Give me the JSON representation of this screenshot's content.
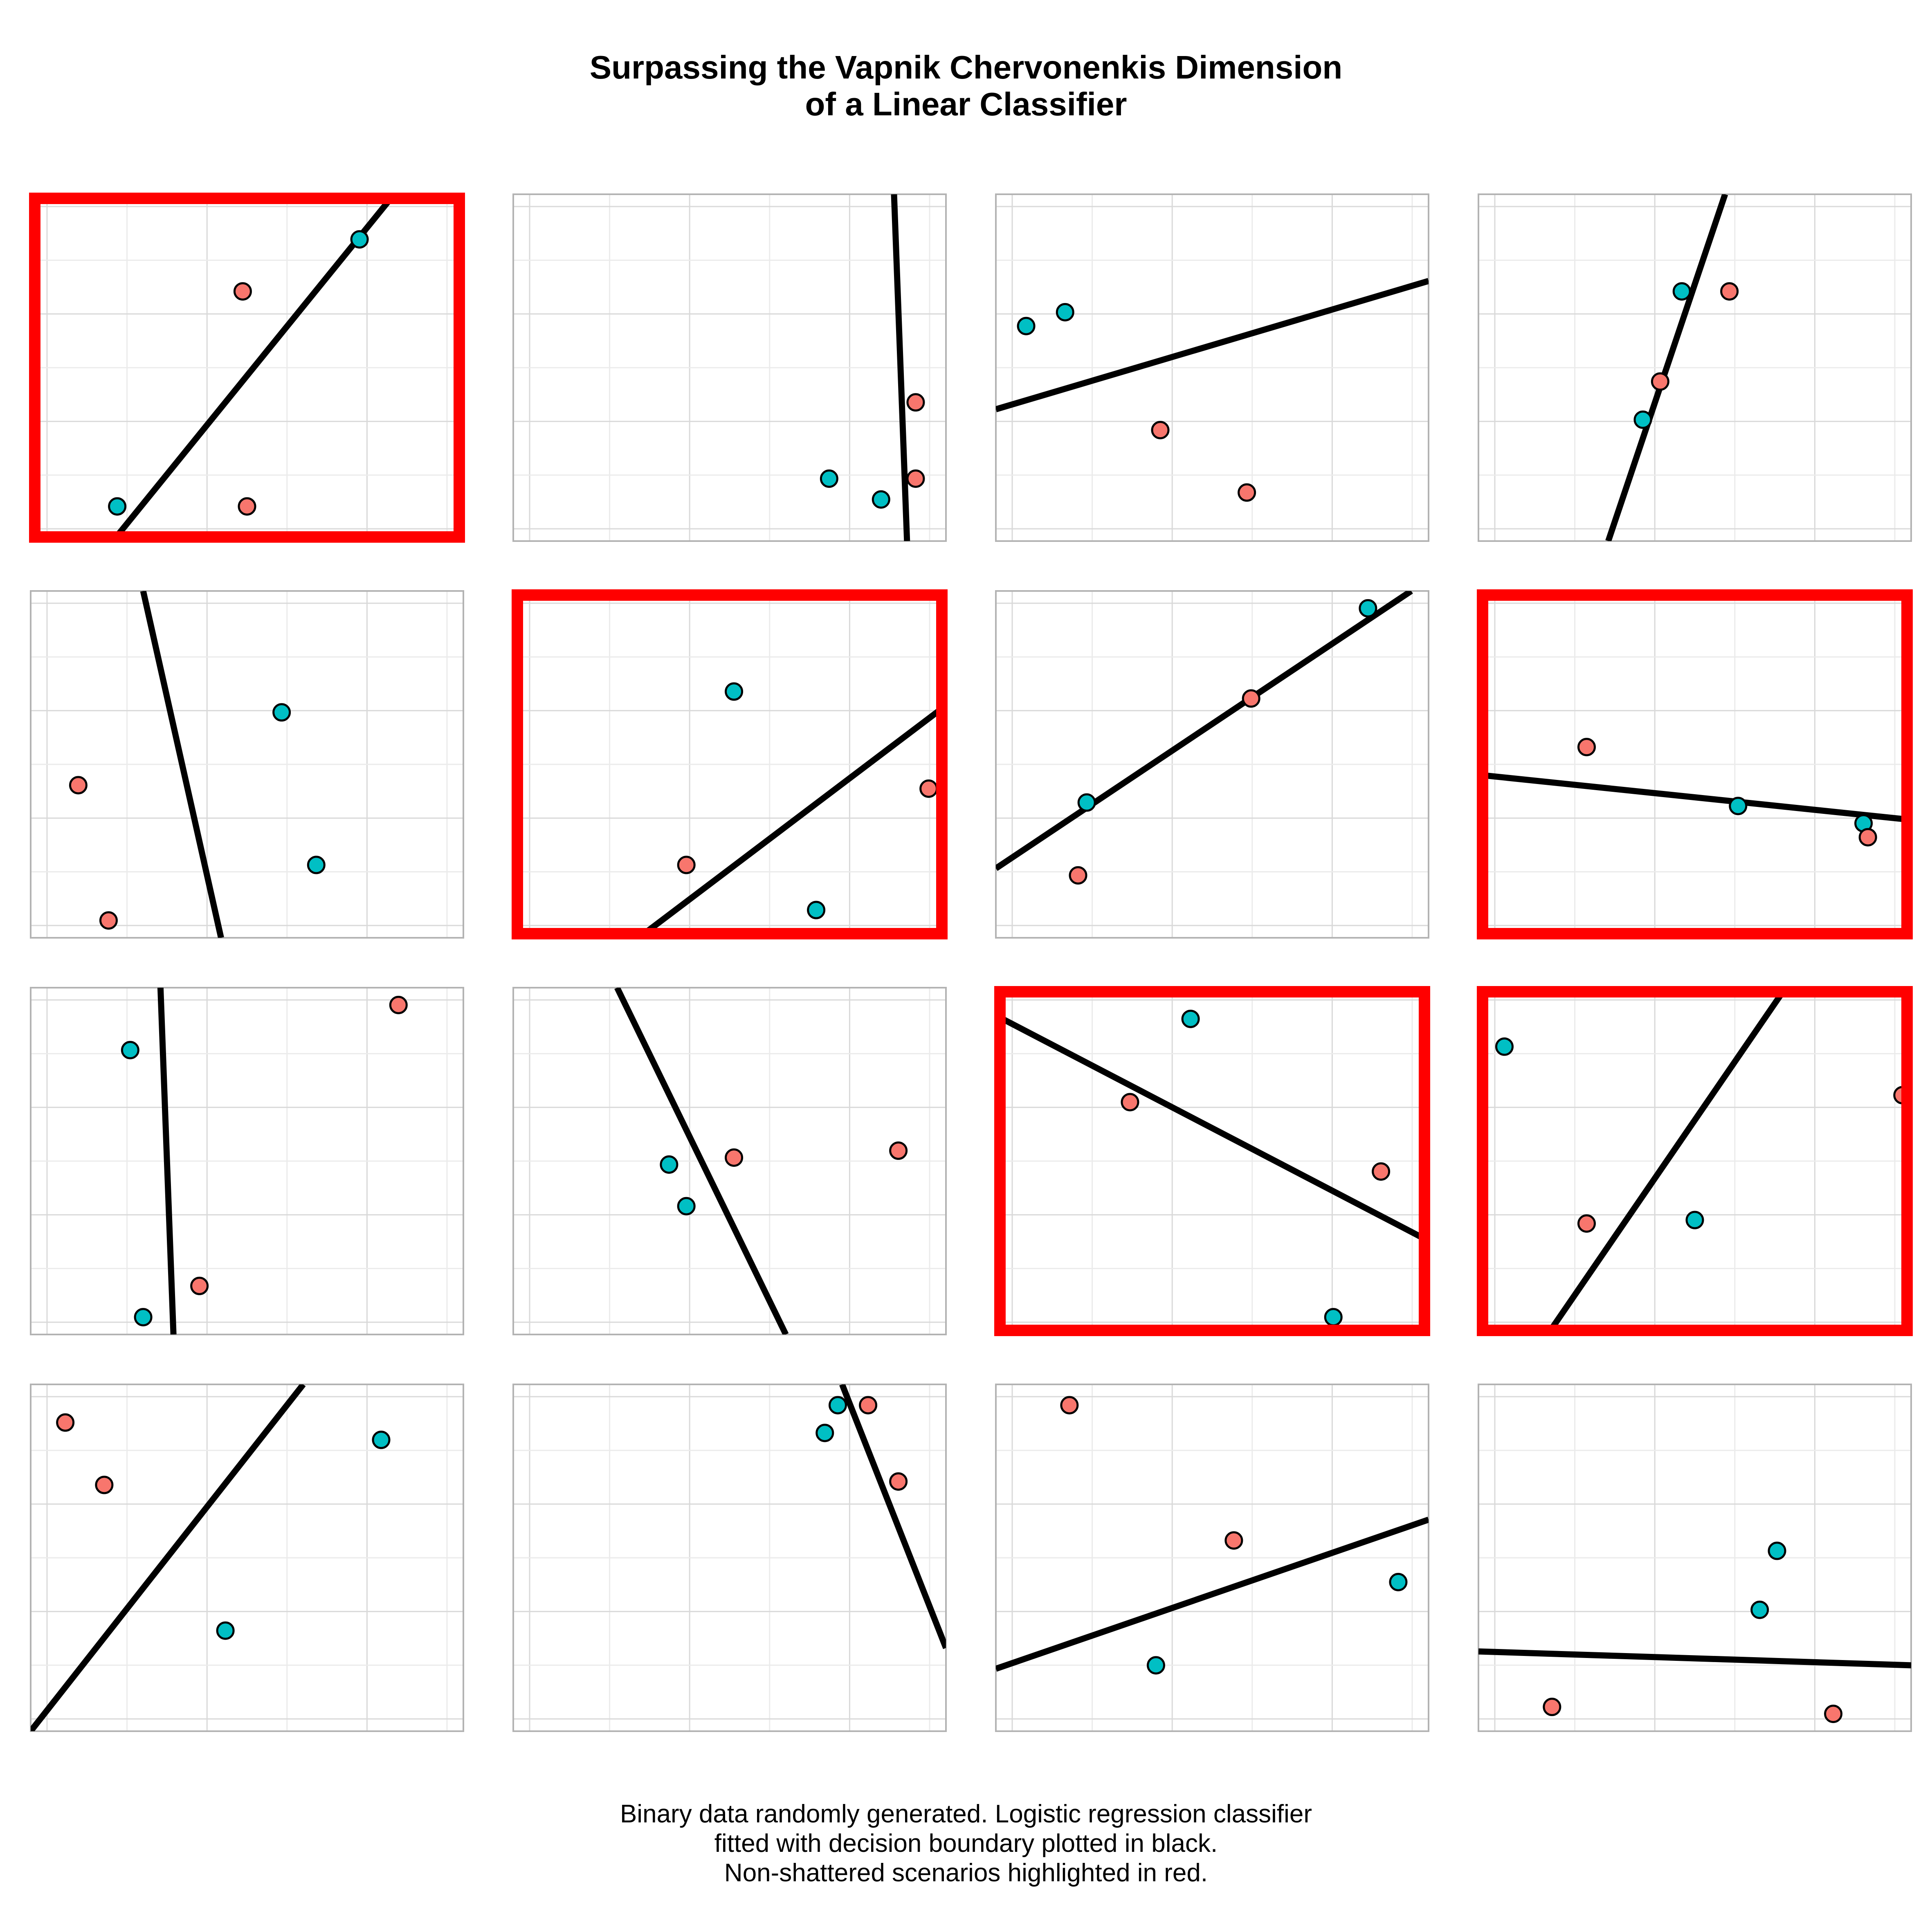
{
  "title": {
    "line1": "Surpassing the Vapnik Chervonenkis Dimension",
    "line2": "of a Linear Classifier"
  },
  "caption": {
    "line1": "Binary data randomly generated. Logistic regression classifier",
    "line2": "fitted with decision boundary plotted in black.",
    "line3": "Non-shattered scenarios highlighted in red."
  },
  "colors": {
    "class_a": "#F8766D",
    "class_b": "#00BFC4",
    "boundary": "#000000",
    "highlight": "#FF0000",
    "grid_major": "#D9D9D9",
    "grid_minor": "#EBEBEB",
    "panel_border": "#B3B3B3"
  },
  "chart_data": [
    {
      "type": "scatter",
      "non_shattered": true,
      "points": [
        {
          "x": 0.2,
          "y": 0.1,
          "class": "b"
        },
        {
          "x": 0.5,
          "y": 0.1,
          "class": "a"
        },
        {
          "x": 0.49,
          "y": 0.72,
          "class": "a"
        },
        {
          "x": 0.76,
          "y": 0.87,
          "class": "b"
        }
      ],
      "boundary": [
        [
          0.19,
          0.0
        ],
        [
          0.84,
          1.0
        ]
      ]
    },
    {
      "type": "scatter",
      "non_shattered": false,
      "points": [
        {
          "x": 0.93,
          "y": 0.4,
          "class": "a"
        },
        {
          "x": 0.73,
          "y": 0.18,
          "class": "b"
        },
        {
          "x": 0.93,
          "y": 0.18,
          "class": "a"
        },
        {
          "x": 0.85,
          "y": 0.12,
          "class": "b"
        }
      ],
      "boundary": [
        [
          0.88,
          1.0
        ],
        [
          0.91,
          0.0
        ]
      ]
    },
    {
      "type": "scatter",
      "non_shattered": false,
      "points": [
        {
          "x": 0.07,
          "y": 0.62,
          "class": "b"
        },
        {
          "x": 0.16,
          "y": 0.66,
          "class": "b"
        },
        {
          "x": 0.38,
          "y": 0.32,
          "class": "a"
        },
        {
          "x": 0.58,
          "y": 0.14,
          "class": "a"
        }
      ],
      "boundary": [
        [
          0.0,
          0.38
        ],
        [
          1.0,
          0.75
        ]
      ]
    },
    {
      "type": "scatter",
      "non_shattered": false,
      "points": [
        {
          "x": 0.47,
          "y": 0.72,
          "class": "b"
        },
        {
          "x": 0.58,
          "y": 0.72,
          "class": "a"
        },
        {
          "x": 0.42,
          "y": 0.46,
          "class": "a"
        },
        {
          "x": 0.38,
          "y": 0.35,
          "class": "b"
        }
      ],
      "boundary": [
        [
          0.3,
          0.0
        ],
        [
          0.57,
          1.0
        ]
      ]
    },
    {
      "type": "scatter",
      "non_shattered": false,
      "points": [
        {
          "x": 0.58,
          "y": 0.65,
          "class": "b"
        },
        {
          "x": 0.11,
          "y": 0.44,
          "class": "a"
        },
        {
          "x": 0.66,
          "y": 0.21,
          "class": "b"
        },
        {
          "x": 0.18,
          "y": 0.05,
          "class": "a"
        }
      ],
      "boundary": [
        [
          0.26,
          1.0
        ],
        [
          0.44,
          0.0
        ]
      ]
    },
    {
      "type": "scatter",
      "non_shattered": true,
      "points": [
        {
          "x": 0.51,
          "y": 0.71,
          "class": "b"
        },
        {
          "x": 0.4,
          "y": 0.21,
          "class": "a"
        },
        {
          "x": 0.96,
          "y": 0.43,
          "class": "a"
        },
        {
          "x": 0.7,
          "y": 0.08,
          "class": "b"
        }
      ],
      "boundary": [
        [
          0.29,
          0.0
        ],
        [
          1.0,
          0.67
        ]
      ]
    },
    {
      "type": "scatter",
      "non_shattered": false,
      "points": [
        {
          "x": 0.86,
          "y": 0.95,
          "class": "b"
        },
        {
          "x": 0.59,
          "y": 0.69,
          "class": "a"
        },
        {
          "x": 0.21,
          "y": 0.39,
          "class": "b"
        },
        {
          "x": 0.19,
          "y": 0.18,
          "class": "a"
        }
      ],
      "boundary": [
        [
          0.0,
          0.2
        ],
        [
          0.96,
          1.0
        ]
      ]
    },
    {
      "type": "scatter",
      "non_shattered": true,
      "points": [
        {
          "x": 0.25,
          "y": 0.55,
          "class": "a"
        },
        {
          "x": 0.6,
          "y": 0.38,
          "class": "b"
        },
        {
          "x": 0.89,
          "y": 0.33,
          "class": "b"
        },
        {
          "x": 0.9,
          "y": 0.29,
          "class": "a"
        }
      ],
      "boundary": [
        [
          0.0,
          0.47
        ],
        [
          1.0,
          0.34
        ]
      ]
    },
    {
      "type": "scatter",
      "non_shattered": false,
      "points": [
        {
          "x": 0.85,
          "y": 0.95,
          "class": "a"
        },
        {
          "x": 0.23,
          "y": 0.82,
          "class": "b"
        },
        {
          "x": 0.39,
          "y": 0.14,
          "class": "a"
        },
        {
          "x": 0.26,
          "y": 0.05,
          "class": "b"
        }
      ],
      "boundary": [
        [
          0.3,
          1.0
        ],
        [
          0.33,
          0.0
        ]
      ]
    },
    {
      "type": "scatter",
      "non_shattered": false,
      "points": [
        {
          "x": 0.89,
          "y": 0.53,
          "class": "a"
        },
        {
          "x": 0.51,
          "y": 0.51,
          "class": "a"
        },
        {
          "x": 0.36,
          "y": 0.49,
          "class": "b"
        },
        {
          "x": 0.4,
          "y": 0.37,
          "class": "b"
        }
      ],
      "boundary": [
        [
          0.24,
          1.0
        ],
        [
          0.63,
          0.0
        ]
      ]
    },
    {
      "type": "scatter",
      "non_shattered": true,
      "points": [
        {
          "x": 0.45,
          "y": 0.91,
          "class": "b"
        },
        {
          "x": 0.31,
          "y": 0.67,
          "class": "a"
        },
        {
          "x": 0.89,
          "y": 0.47,
          "class": "a"
        },
        {
          "x": 0.78,
          "y": 0.05,
          "class": "b"
        }
      ],
      "boundary": [
        [
          0.0,
          0.92
        ],
        [
          1.0,
          0.27
        ]
      ]
    },
    {
      "type": "scatter",
      "non_shattered": true,
      "points": [
        {
          "x": 0.06,
          "y": 0.83,
          "class": "b"
        },
        {
          "x": 0.98,
          "y": 0.69,
          "class": "a"
        },
        {
          "x": 0.25,
          "y": 0.32,
          "class": "a"
        },
        {
          "x": 0.5,
          "y": 0.33,
          "class": "b"
        }
      ],
      "boundary": [
        [
          0.16,
          0.0
        ],
        [
          0.71,
          1.0
        ]
      ]
    },
    {
      "type": "scatter",
      "non_shattered": false,
      "points": [
        {
          "x": 0.08,
          "y": 0.89,
          "class": "a"
        },
        {
          "x": 0.17,
          "y": 0.71,
          "class": "a"
        },
        {
          "x": 0.81,
          "y": 0.84,
          "class": "b"
        },
        {
          "x": 0.45,
          "y": 0.29,
          "class": "b"
        }
      ],
      "boundary": [
        [
          0.0,
          0.0
        ],
        [
          0.63,
          1.0
        ]
      ]
    },
    {
      "type": "scatter",
      "non_shattered": false,
      "points": [
        {
          "x": 0.75,
          "y": 0.94,
          "class": "b"
        },
        {
          "x": 0.82,
          "y": 0.94,
          "class": "a"
        },
        {
          "x": 0.72,
          "y": 0.86,
          "class": "b"
        },
        {
          "x": 0.89,
          "y": 0.72,
          "class": "a"
        }
      ],
      "boundary": [
        [
          0.76,
          1.0
        ],
        [
          1.0,
          0.24
        ]
      ]
    },
    {
      "type": "scatter",
      "non_shattered": false,
      "points": [
        {
          "x": 0.17,
          "y": 0.94,
          "class": "a"
        },
        {
          "x": 0.55,
          "y": 0.55,
          "class": "a"
        },
        {
          "x": 0.93,
          "y": 0.43,
          "class": "b"
        },
        {
          "x": 0.37,
          "y": 0.19,
          "class": "b"
        }
      ],
      "boundary": [
        [
          0.0,
          0.18
        ],
        [
          1.0,
          0.61
        ]
      ]
    },
    {
      "type": "scatter",
      "non_shattered": false,
      "points": [
        {
          "x": 0.69,
          "y": 0.52,
          "class": "b"
        },
        {
          "x": 0.65,
          "y": 0.35,
          "class": "b"
        },
        {
          "x": 0.17,
          "y": 0.07,
          "class": "a"
        },
        {
          "x": 0.82,
          "y": 0.05,
          "class": "a"
        }
      ],
      "boundary": [
        [
          0.0,
          0.23
        ],
        [
          1.0,
          0.19
        ]
      ]
    }
  ]
}
